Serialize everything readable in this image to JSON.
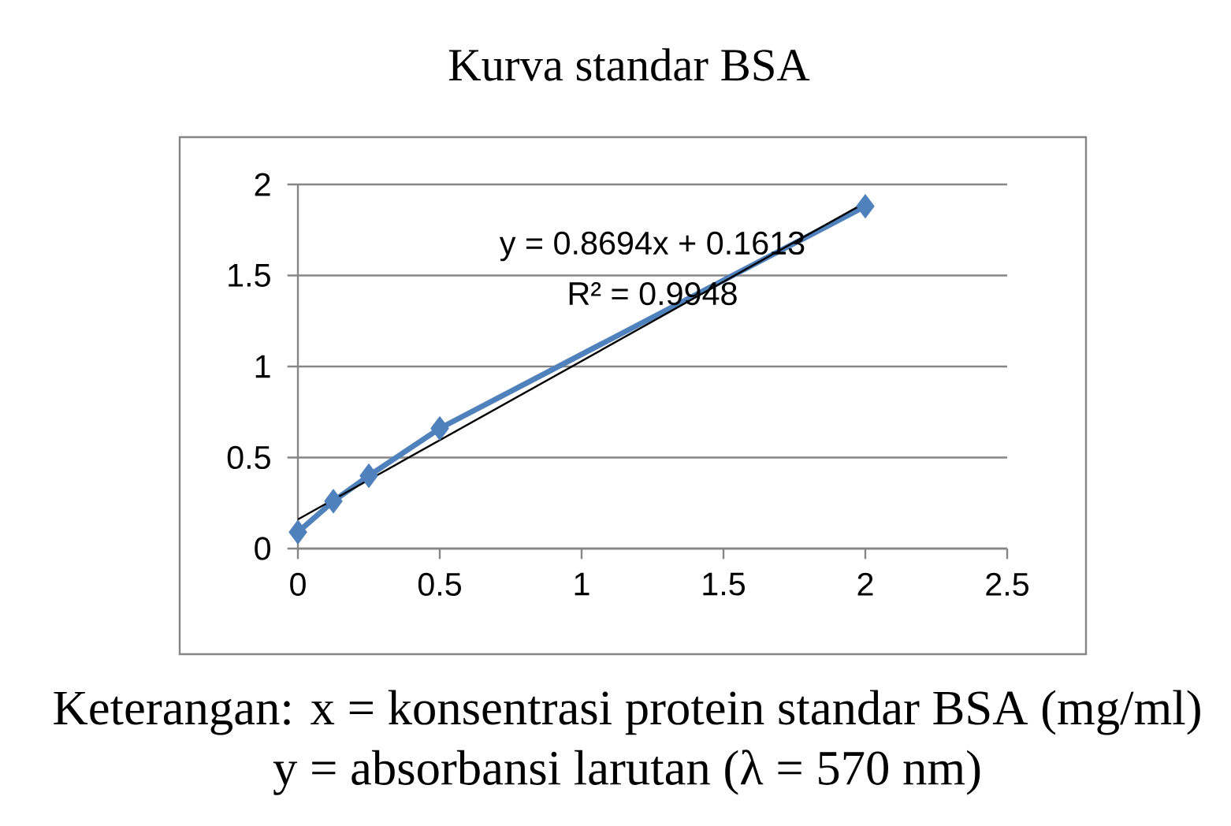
{
  "chart_data": {
    "type": "line",
    "title": "Kurva standar BSA",
    "annotations": [
      "y = 0.8694x + 0.1613",
      "R² = 0.9948",
      "Keterangan: x = konsentrasi protein standar BSA (mg/ml)",
      "y = absorbansi larutan (λ = 570 nm)"
    ],
    "x": [
      0,
      0.125,
      0.25,
      0.5,
      2
    ],
    "series": [
      {
        "color": "#4f81bd",
        "values": [
          0.09,
          0.26,
          0.4,
          0.66,
          1.88
        ],
        "marker": "diamond"
      },
      {
        "type": "line",
        "color": "#000000",
        "x": [
          0,
          2
        ],
        "values": [
          0.16,
          1.9
        ],
        "marker": "none"
      }
    ],
    "xlim": [
      0,
      2.5
    ],
    "xticks": [
      0,
      0.5,
      1,
      1.5,
      2,
      2.5
    ],
    "ylim": [
      0,
      2
    ],
    "yticks": [
      0,
      0.5,
      1,
      1.5,
      2
    ],
    "grid": "y"
  }
}
